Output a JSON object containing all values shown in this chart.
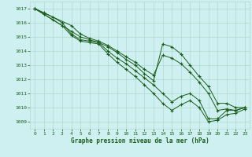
{
  "xlabel": "Graphe pression niveau de la mer (hPa)",
  "background_color": "#cff0f0",
  "grid_color": "#afd8d0",
  "line_color": "#1a5c1a",
  "xlim": [
    -0.5,
    23.5
  ],
  "ylim": [
    1008.5,
    1017.5
  ],
  "xticks": [
    0,
    1,
    2,
    3,
    4,
    5,
    6,
    7,
    8,
    9,
    10,
    11,
    12,
    13,
    14,
    15,
    16,
    17,
    18,
    19,
    20,
    21,
    22,
    23
  ],
  "yticks": [
    1009,
    1010,
    1011,
    1012,
    1013,
    1014,
    1015,
    1016,
    1017
  ],
  "series": [
    {
      "x": [
        0,
        1,
        2,
        3,
        4,
        5,
        6,
        7,
        8,
        9,
        10,
        11,
        12,
        13,
        14,
        15,
        16,
        17,
        18,
        19,
        20,
        21,
        22,
        23
      ],
      "y": [
        1017.0,
        1016.7,
        1016.4,
        1016.0,
        1015.2,
        1014.8,
        1014.7,
        1014.6,
        1014.0,
        1013.5,
        1013.1,
        1012.6,
        1012.1,
        1011.6,
        1011.0,
        1010.4,
        1010.8,
        1011.0,
        1010.5,
        1009.2,
        1009.2,
        1009.8,
        1009.8,
        1010.0
      ]
    },
    {
      "x": [
        0,
        1,
        2,
        3,
        4,
        5,
        6,
        7,
        8,
        9,
        10,
        11,
        12,
        13,
        14,
        15,
        16,
        17,
        18,
        19,
        20,
        21,
        22,
        23
      ],
      "y": [
        1017.0,
        1016.6,
        1016.2,
        1015.8,
        1015.1,
        1014.7,
        1014.6,
        1014.5,
        1013.8,
        1013.2,
        1012.7,
        1012.2,
        1011.6,
        1011.0,
        1010.3,
        1009.8,
        1010.2,
        1010.5,
        1010.0,
        1009.0,
        1009.1,
        1009.5,
        1009.6,
        1009.9
      ]
    },
    {
      "x": [
        0,
        4,
        5,
        6,
        7,
        8,
        9,
        10,
        11,
        12,
        13,
        14,
        15,
        16,
        17,
        18,
        19,
        20,
        21,
        22,
        23
      ],
      "y": [
        1017.0,
        1015.8,
        1015.2,
        1014.9,
        1014.7,
        1014.4,
        1014.0,
        1013.6,
        1013.2,
        1012.7,
        1012.3,
        1013.7,
        1013.5,
        1013.1,
        1012.5,
        1011.8,
        1011.0,
        1009.8,
        1009.9,
        1009.8,
        1010.0
      ]
    },
    {
      "x": [
        0,
        4,
        5,
        6,
        7,
        8,
        9,
        10,
        11,
        12,
        13,
        14,
        15,
        16,
        17,
        18,
        19,
        20,
        21,
        22,
        23
      ],
      "y": [
        1017.0,
        1015.4,
        1015.0,
        1014.8,
        1014.6,
        1014.3,
        1013.9,
        1013.4,
        1013.0,
        1012.4,
        1011.9,
        1014.5,
        1014.3,
        1013.8,
        1013.0,
        1012.2,
        1011.5,
        1010.3,
        1010.3,
        1010.0,
        1010.0
      ]
    }
  ]
}
